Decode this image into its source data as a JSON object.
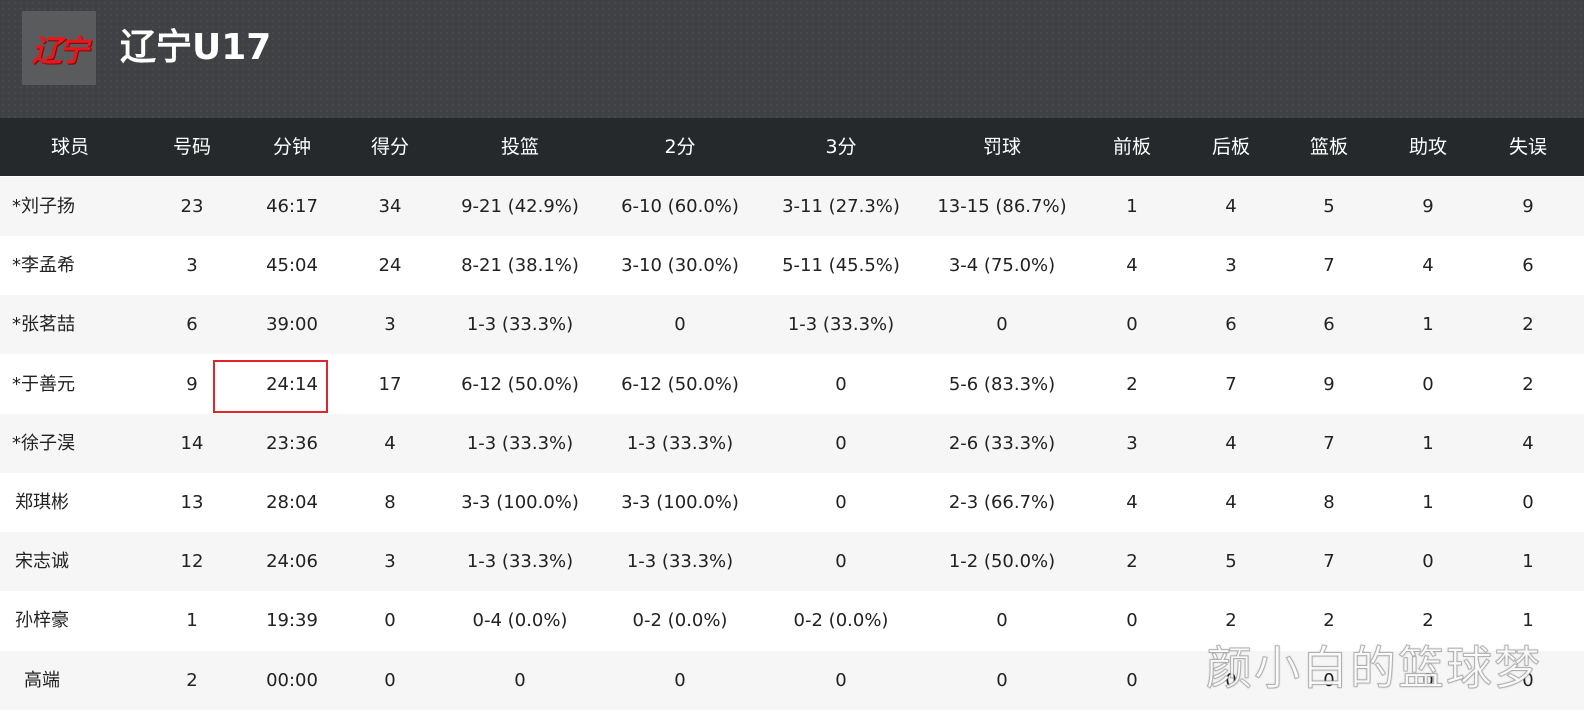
{
  "header": {
    "logo_text": "辽宁",
    "team_name": "辽宁U17"
  },
  "columns": [
    "球员",
    "号码",
    "分钟",
    "得分",
    "投篮",
    "2分",
    "3分",
    "罚球",
    "前板",
    "后板",
    "篮板",
    "助攻",
    "失误"
  ],
  "players": [
    [
      "*刘子扬",
      "23",
      "46:17",
      "34",
      "9-21 (42.9%)",
      "6-10 (60.0%)",
      "3-11 (27.3%)",
      "13-15 (86.7%)",
      "1",
      "4",
      "5",
      "9",
      "9"
    ],
    [
      "*李孟希",
      "3",
      "45:04",
      "24",
      "8-21 (38.1%)",
      "3-10 (30.0%)",
      "5-11 (45.5%)",
      "3-4 (75.0%)",
      "4",
      "3",
      "7",
      "4",
      "6"
    ],
    [
      "*张茗喆",
      "6",
      "39:00",
      "3",
      "1-3 (33.3%)",
      "0",
      "1-3 (33.3%)",
      "0",
      "0",
      "6",
      "6",
      "1",
      "2"
    ],
    [
      "*于善元",
      "9",
      "24:14",
      "17",
      "6-12 (50.0%)",
      "6-12 (50.0%)",
      "0",
      "5-6 (83.3%)",
      "2",
      "7",
      "9",
      "0",
      "2"
    ],
    [
      "*徐子淏",
      "14",
      "23:36",
      "4",
      "1-3 (33.3%)",
      "1-3 (33.3%)",
      "0",
      "2-6 (33.3%)",
      "3",
      "4",
      "7",
      "1",
      "4"
    ],
    [
      "郑琪彬",
      "13",
      "28:04",
      "8",
      "3-3 (100.0%)",
      "3-3 (100.0%)",
      "0",
      "2-3 (66.7%)",
      "4",
      "4",
      "8",
      "1",
      "0"
    ],
    [
      "宋志诚",
      "12",
      "24:06",
      "3",
      "1-3 (33.3%)",
      "1-3 (33.3%)",
      "0",
      "1-2 (50.0%)",
      "2",
      "5",
      "7",
      "0",
      "1"
    ],
    [
      "孙梓豪",
      "1",
      "19:39",
      "0",
      "0-4 (0.0%)",
      "0-2 (0.0%)",
      "0-2 (0.0%)",
      "0",
      "0",
      "2",
      "2",
      "2",
      "1"
    ],
    [
      "高端",
      "2",
      "00:00",
      "0",
      "0",
      "0",
      "0",
      "0",
      "0",
      "0",
      "0",
      "0",
      "0"
    ]
  ],
  "watermark": "颜小白的篮球梦",
  "colors": {
    "header_bg": "#3f4144",
    "column_header_bg": "#26292c",
    "row_alt_bg": "#f6f6f6",
    "highlight_border": "#e0262c",
    "logo_red": "#e8171c"
  }
}
